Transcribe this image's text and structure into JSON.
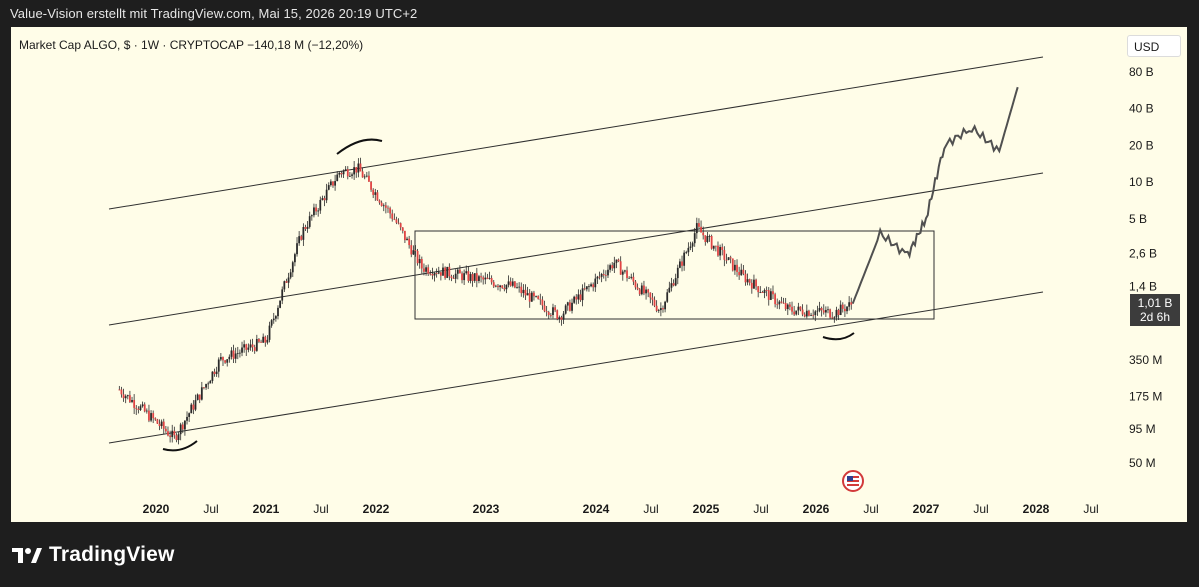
{
  "header": {
    "text": "Value-Vision erstellt mit TradingView.com, Mai 15, 2026 20:19 UTC+2"
  },
  "chart": {
    "symbol_line": "Market Cap ALGO, $ · 1W · CRYPTOCAP  −140,18 M (−12,20%)",
    "currency_button": "USD",
    "price_badge": {
      "value": "1,01 B",
      "countdown": "2d 6h"
    },
    "event_icon": "us-flag-icon",
    "colors": {
      "background": "#fffde8",
      "candle_up": "#2a2a2a",
      "candle_down": "#e04343",
      "lines": "#2f2f2f",
      "frame": "#1e1e1e"
    }
  },
  "chart_data": {
    "type": "candlestick",
    "title": "Market Cap ALGO, $ · 1W · CRYPTOCAP",
    "y_scale": "log",
    "y_ticks": [
      "80 B",
      "40 B",
      "20 B",
      "10 B",
      "5 B",
      "2,6 B",
      "1,4 B",
      "350 M",
      "175 M",
      "95 M",
      "50 M"
    ],
    "x_ticks": [
      "2020",
      "Jul",
      "2021",
      "Jul",
      "2022",
      "2023",
      "2024",
      "Jul",
      "2025",
      "Jul",
      "2026",
      "Jul",
      "2027",
      "Jul",
      "2028",
      "Jul"
    ],
    "last_value": "1,01 B",
    "change": "−140,18 M (−12,20%)",
    "price_path_approx": [
      {
        "date": "2019-09",
        "value_B": 0.2
      },
      {
        "date": "2020-03",
        "value_B": 0.08
      },
      {
        "date": "2020-08",
        "value_B": 0.35
      },
      {
        "date": "2021-01",
        "value_B": 0.5
      },
      {
        "date": "2021-05",
        "value_B": 4.0
      },
      {
        "date": "2021-09",
        "value_B": 12.0
      },
      {
        "date": "2021-11",
        "value_B": 13.0
      },
      {
        "date": "2022-03",
        "value_B": 5.0
      },
      {
        "date": "2022-06",
        "value_B": 2.0
      },
      {
        "date": "2023-04",
        "value_B": 1.4
      },
      {
        "date": "2023-09",
        "value_B": 0.8
      },
      {
        "date": "2024-03",
        "value_B": 2.2
      },
      {
        "date": "2024-08",
        "value_B": 0.9
      },
      {
        "date": "2024-12",
        "value_B": 4.2
      },
      {
        "date": "2025-05",
        "value_B": 1.7
      },
      {
        "date": "2025-10",
        "value_B": 0.9
      },
      {
        "date": "2026-03",
        "value_B": 0.85
      },
      {
        "date": "2026-05",
        "value_B": 1.01
      }
    ],
    "projection_approx": [
      {
        "date": "2026-05",
        "value_B": 1.01
      },
      {
        "date": "2026-08",
        "value_B": 3.8
      },
      {
        "date": "2026-11",
        "value_B": 2.5
      },
      {
        "date": "2027-01",
        "value_B": 5.0
      },
      {
        "date": "2027-03",
        "value_B": 20.0
      },
      {
        "date": "2027-06",
        "value_B": 28.0
      },
      {
        "date": "2027-09",
        "value_B": 18.0
      },
      {
        "date": "2027-11",
        "value_B": 60.0
      }
    ],
    "annotations": [
      "ascending parallel channel (upper, middle, lower lines)",
      "accumulation range box 2022–2026",
      "arcs marking 2020 low, 2021 top, 2026 low"
    ],
    "grid": false
  }
}
